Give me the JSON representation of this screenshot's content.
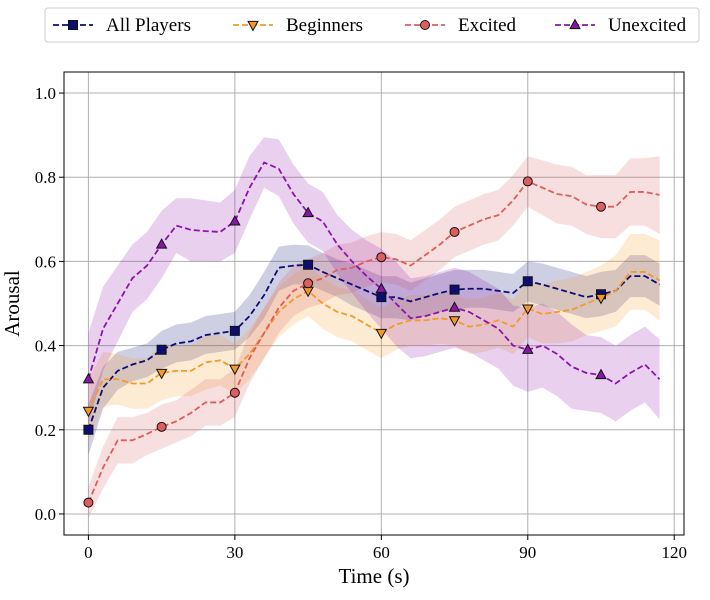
{
  "chart_data": {
    "type": "line",
    "title": "",
    "xlabel": "Time (s)",
    "ylabel": "Arousal",
    "xlim": [
      -5,
      122
    ],
    "ylim": [
      -0.05,
      1.05
    ],
    "xticks": [
      0,
      30,
      60,
      90,
      120
    ],
    "yticks": [
      0.0,
      0.2,
      0.4,
      0.6,
      0.8,
      1.0
    ],
    "xtick_labels": [
      "0",
      "30",
      "60",
      "90",
      "120"
    ],
    "ytick_labels": [
      "0.0",
      "0.2",
      "0.4",
      "0.6",
      "0.8",
      "1.0"
    ],
    "grid": true,
    "legend_position": "top, outside plot, single row",
    "x": [
      0,
      3,
      6,
      9,
      12,
      15,
      18,
      21,
      24,
      27,
      30,
      33,
      36,
      39,
      42,
      45,
      48,
      51,
      54,
      57,
      60,
      63,
      66,
      69,
      72,
      75,
      78,
      81,
      84,
      87,
      90,
      93,
      96,
      99,
      102,
      105,
      108,
      111,
      114,
      117
    ],
    "marker_every": 5,
    "series": [
      {
        "name": "All Players",
        "color": "#0d0d73",
        "marker": "square",
        "values": [
          0.2,
          0.3,
          0.34,
          0.355,
          0.365,
          0.39,
          0.405,
          0.41,
          0.425,
          0.43,
          0.435,
          0.47,
          0.52,
          0.585,
          0.59,
          0.592,
          0.575,
          0.56,
          0.545,
          0.53,
          0.515,
          0.515,
          0.505,
          0.515,
          0.525,
          0.533,
          0.535,
          0.535,
          0.53,
          0.525,
          0.553,
          0.545,
          0.535,
          0.525,
          0.515,
          0.522,
          0.53,
          0.565,
          0.565,
          0.545
        ],
        "lower": [
          0.14,
          0.25,
          0.295,
          0.315,
          0.325,
          0.345,
          0.36,
          0.365,
          0.38,
          0.385,
          0.39,
          0.42,
          0.465,
          0.53,
          0.545,
          0.545,
          0.53,
          0.515,
          0.495,
          0.48,
          0.465,
          0.465,
          0.46,
          0.47,
          0.48,
          0.485,
          0.49,
          0.49,
          0.485,
          0.48,
          0.505,
          0.495,
          0.485,
          0.475,
          0.465,
          0.47,
          0.48,
          0.515,
          0.515,
          0.495
        ],
        "upper": [
          0.26,
          0.35,
          0.385,
          0.395,
          0.405,
          0.435,
          0.45,
          0.455,
          0.47,
          0.475,
          0.48,
          0.52,
          0.575,
          0.635,
          0.64,
          0.638,
          0.62,
          0.605,
          0.595,
          0.58,
          0.565,
          0.565,
          0.55,
          0.56,
          0.57,
          0.58,
          0.58,
          0.58,
          0.575,
          0.57,
          0.6,
          0.595,
          0.585,
          0.575,
          0.565,
          0.575,
          0.58,
          0.615,
          0.615,
          0.595
        ]
      },
      {
        "name": "Beginners",
        "color": "#f39a2a",
        "marker": "triangle-down",
        "values": [
          0.245,
          0.32,
          0.32,
          0.31,
          0.31,
          0.335,
          0.34,
          0.34,
          0.36,
          0.365,
          0.345,
          0.38,
          0.43,
          0.48,
          0.51,
          0.53,
          0.5,
          0.48,
          0.47,
          0.45,
          0.43,
          0.45,
          0.46,
          0.46,
          0.465,
          0.46,
          0.445,
          0.45,
          0.46,
          0.445,
          0.488,
          0.475,
          0.48,
          0.485,
          0.5,
          0.513,
          0.53,
          0.575,
          0.575,
          0.555
        ],
        "lower": [
          0.17,
          0.255,
          0.26,
          0.25,
          0.25,
          0.27,
          0.28,
          0.28,
          0.295,
          0.305,
          0.285,
          0.32,
          0.37,
          0.42,
          0.45,
          0.47,
          0.44,
          0.42,
          0.41,
          0.39,
          0.37,
          0.39,
          0.4,
          0.4,
          0.405,
          0.4,
          0.38,
          0.385,
          0.395,
          0.38,
          0.42,
          0.405,
          0.405,
          0.41,
          0.425,
          0.435,
          0.445,
          0.485,
          0.485,
          0.46
        ],
        "upper": [
          0.32,
          0.385,
          0.38,
          0.37,
          0.37,
          0.4,
          0.4,
          0.4,
          0.425,
          0.425,
          0.405,
          0.44,
          0.49,
          0.54,
          0.57,
          0.59,
          0.56,
          0.54,
          0.53,
          0.51,
          0.49,
          0.51,
          0.52,
          0.52,
          0.525,
          0.52,
          0.51,
          0.515,
          0.525,
          0.51,
          0.556,
          0.545,
          0.555,
          0.56,
          0.575,
          0.59,
          0.615,
          0.665,
          0.665,
          0.65
        ]
      },
      {
        "name": "Excited",
        "color": "#dd5e5e",
        "marker": "circle",
        "values": [
          0.027,
          0.11,
          0.175,
          0.175,
          0.19,
          0.207,
          0.22,
          0.24,
          0.265,
          0.265,
          0.288,
          0.37,
          0.43,
          0.49,
          0.53,
          0.548,
          0.56,
          0.58,
          0.585,
          0.6,
          0.61,
          0.605,
          0.59,
          0.615,
          0.64,
          0.67,
          0.685,
          0.7,
          0.71,
          0.745,
          0.79,
          0.775,
          0.76,
          0.755,
          0.735,
          0.73,
          0.73,
          0.765,
          0.765,
          0.758
        ],
        "lower": [
          -0.01,
          0.06,
          0.12,
          0.12,
          0.14,
          0.155,
          0.17,
          0.185,
          0.21,
          0.21,
          0.23,
          0.31,
          0.37,
          0.43,
          0.47,
          0.49,
          0.5,
          0.52,
          0.525,
          0.54,
          0.55,
          0.545,
          0.53,
          0.555,
          0.58,
          0.61,
          0.625,
          0.64,
          0.65,
          0.685,
          0.73,
          0.71,
          0.69,
          0.685,
          0.665,
          0.655,
          0.655,
          0.685,
          0.685,
          0.665
        ],
        "upper": [
          0.065,
          0.16,
          0.23,
          0.23,
          0.24,
          0.26,
          0.27,
          0.295,
          0.32,
          0.32,
          0.345,
          0.43,
          0.49,
          0.55,
          0.59,
          0.606,
          0.62,
          0.64,
          0.645,
          0.66,
          0.67,
          0.665,
          0.65,
          0.675,
          0.7,
          0.73,
          0.745,
          0.76,
          0.77,
          0.805,
          0.85,
          0.84,
          0.83,
          0.825,
          0.805,
          0.805,
          0.805,
          0.845,
          0.845,
          0.85
        ]
      },
      {
        "name": "Unexcited",
        "color": "#8b15a8",
        "marker": "triangle-up",
        "values": [
          0.32,
          0.44,
          0.5,
          0.56,
          0.59,
          0.64,
          0.685,
          0.675,
          0.672,
          0.67,
          0.695,
          0.775,
          0.835,
          0.82,
          0.76,
          0.715,
          0.695,
          0.64,
          0.6,
          0.565,
          0.535,
          0.5,
          0.465,
          0.47,
          0.48,
          0.49,
          0.48,
          0.46,
          0.44,
          0.4,
          0.39,
          0.4,
          0.38,
          0.35,
          0.335,
          0.33,
          0.31,
          0.335,
          0.355,
          0.32
        ],
        "lower": [
          0.21,
          0.34,
          0.41,
          0.48,
          0.51,
          0.56,
          0.62,
          0.6,
          0.6,
          0.6,
          0.62,
          0.7,
          0.775,
          0.755,
          0.69,
          0.645,
          0.625,
          0.57,
          0.525,
          0.48,
          0.44,
          0.4,
          0.37,
          0.375,
          0.385,
          0.395,
          0.385,
          0.365,
          0.345,
          0.305,
          0.29,
          0.3,
          0.28,
          0.25,
          0.245,
          0.24,
          0.22,
          0.245,
          0.265,
          0.225
        ],
        "upper": [
          0.43,
          0.54,
          0.59,
          0.64,
          0.67,
          0.72,
          0.75,
          0.75,
          0.745,
          0.74,
          0.77,
          0.85,
          0.895,
          0.89,
          0.83,
          0.785,
          0.765,
          0.71,
          0.675,
          0.65,
          0.63,
          0.6,
          0.56,
          0.565,
          0.575,
          0.585,
          0.575,
          0.555,
          0.535,
          0.495,
          0.49,
          0.5,
          0.48,
          0.45,
          0.425,
          0.42,
          0.4,
          0.425,
          0.445,
          0.415
        ]
      }
    ]
  }
}
